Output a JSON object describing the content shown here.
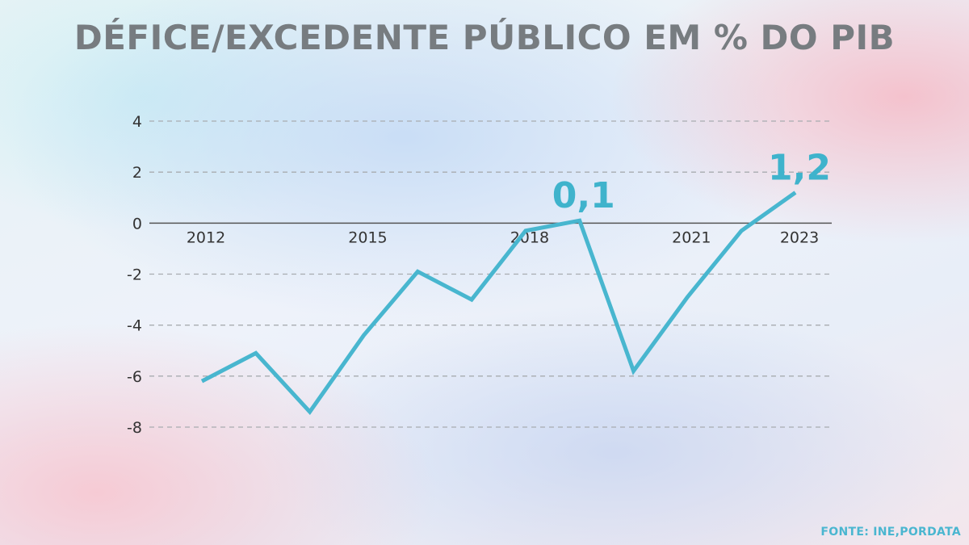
{
  "chart_data": {
    "type": "line",
    "title": "DÉFICE/EXCEDENTE PÚBLICO EM % DO PIB",
    "source": "FONTE: INE,PORDATA",
    "x": [
      2012,
      2013,
      2014,
      2015,
      2016,
      2017,
      2018,
      2019,
      2020,
      2021,
      2022,
      2023
    ],
    "x_tick_labels": [
      "2012",
      "2015",
      "2018",
      "2021",
      "2023"
    ],
    "x_tick_values": [
      2012,
      2015,
      2018,
      2021,
      2023
    ],
    "y_tick_labels": [
      "4",
      "2",
      "0",
      "-2",
      "-4",
      "-6",
      "-8"
    ],
    "y_tick_values": [
      4,
      2,
      0,
      -2,
      -4,
      -6,
      -8
    ],
    "ylim": [
      -8,
      4
    ],
    "grid": true,
    "series": [
      {
        "values": [
          -6.2,
          -5.1,
          -7.4,
          -4.4,
          -1.9,
          -3.0,
          -0.3,
          0.1,
          -5.8,
          -2.9,
          -0.3,
          1.2
        ],
        "color": "#48b6cf"
      }
    ],
    "annotations": [
      {
        "x": 2019,
        "y": 0.1,
        "text": "0,1"
      },
      {
        "x": 2023,
        "y": 1.2,
        "text": "1,2"
      }
    ]
  }
}
